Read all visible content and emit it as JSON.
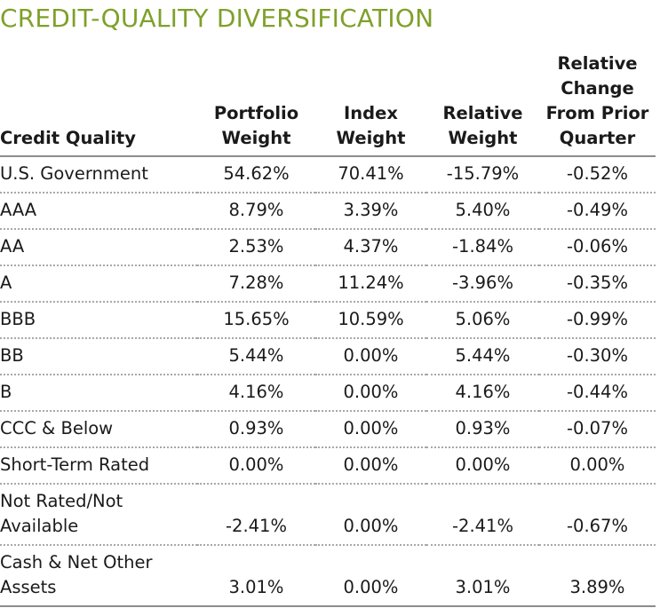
{
  "title": "CREDIT-QUALITY DIVERSIFICATION",
  "headers": [
    "Credit Quality",
    "Portfolio\nWeight",
    "Index\nWeight",
    "Relative\nWeight",
    "Relative\nChange\nFrom Prior\nQuarter"
  ],
  "rows": [
    [
      "U.S. Government",
      "54.62%",
      "70.41%",
      "-15.79%",
      "-0.52%"
    ],
    [
      "AAA",
      "8.79%",
      "3.39%",
      "5.40%",
      "-0.49%"
    ],
    [
      "AA",
      "2.53%",
      "4.37%",
      "-1.84%",
      "-0.06%"
    ],
    [
      "A",
      "7.28%",
      "11.24%",
      "-3.96%",
      "-0.35%"
    ],
    [
      "BBB",
      "15.65%",
      "10.59%",
      "5.06%",
      "-0.99%"
    ],
    [
      "BB",
      "5.44%",
      "0.00%",
      "5.44%",
      "-0.30%"
    ],
    [
      "B",
      "4.16%",
      "0.00%",
      "4.16%",
      "-0.44%"
    ],
    [
      "CCC & Below",
      "0.93%",
      "0.00%",
      "0.93%",
      "-0.07%"
    ],
    [
      "Short-Term Rated",
      "0.00%",
      "0.00%",
      "0.00%",
      "0.00%"
    ],
    [
      "Not Rated/Not\nAvailable",
      "-2.41%",
      "0.00%",
      "-2.41%",
      "-0.67%"
    ],
    [
      "Cash & Net Other\nAssets",
      "3.01%",
      "0.00%",
      "3.01%",
      "3.89%"
    ]
  ],
  "colors": {
    "title": "#7fa02a",
    "text": "#1a1a1a",
    "rule": "#8c8c8c"
  }
}
